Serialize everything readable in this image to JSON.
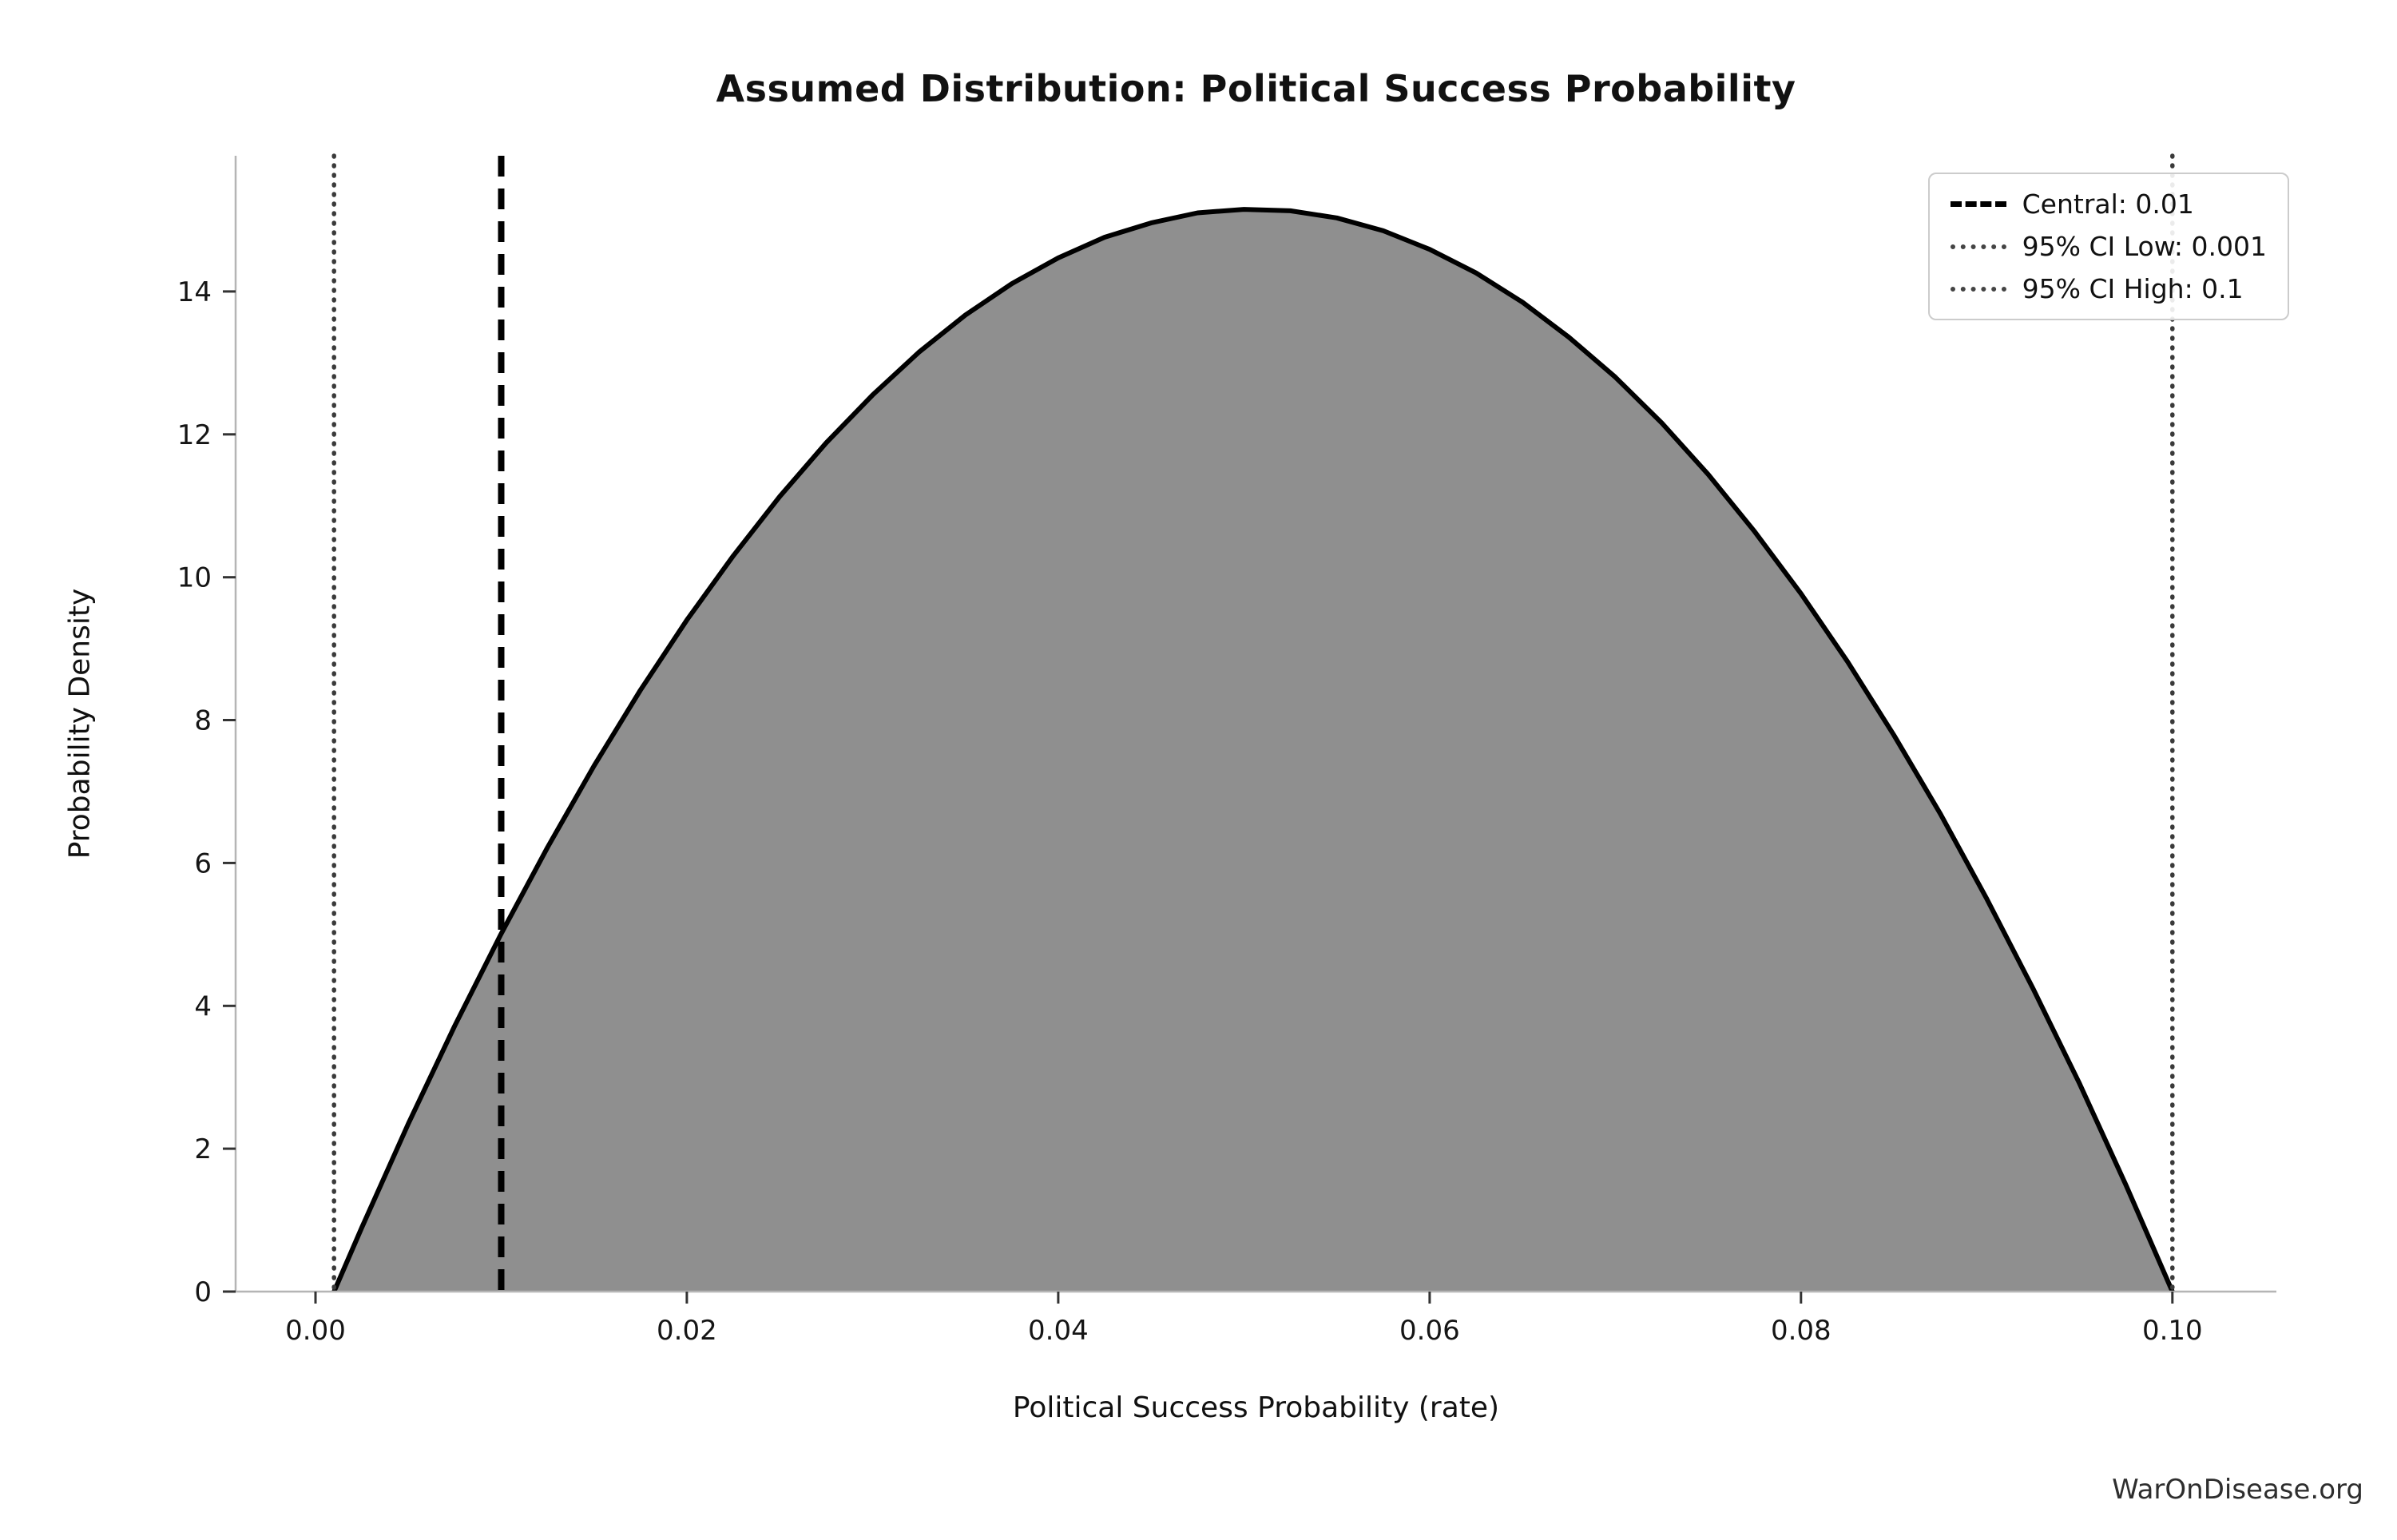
{
  "watermark": "WarOnDisease.org",
  "chart_data": {
    "type": "area",
    "title": "Assumed Distribution: Political Success Probability",
    "xlabel": "Political Success Probability (rate)",
    "ylabel": "Probability Density",
    "xlim": [
      -0.0043,
      0.1056
    ],
    "ylim": [
      0,
      15.9
    ],
    "grid": false,
    "legend_position": "upper right",
    "line_color": "#000000",
    "fill_color": "#8f8f8f",
    "spine_color": "#b5b5b5",
    "xticks": [
      {
        "value": 0.0,
        "label": "0.00"
      },
      {
        "value": 0.02,
        "label": "0.02"
      },
      {
        "value": 0.04,
        "label": "0.04"
      },
      {
        "value": 0.06,
        "label": "0.06"
      },
      {
        "value": 0.08,
        "label": "0.08"
      },
      {
        "value": 0.1,
        "label": "0.10"
      }
    ],
    "yticks": [
      {
        "value": 0,
        "label": "0"
      },
      {
        "value": 2,
        "label": "2"
      },
      {
        "value": 4,
        "label": "4"
      },
      {
        "value": 6,
        "label": "6"
      },
      {
        "value": 8,
        "label": "8"
      },
      {
        "value": 10,
        "label": "10"
      },
      {
        "value": 12,
        "label": "12"
      },
      {
        "value": 14,
        "label": "14"
      }
    ],
    "curve": {
      "name": "probability-density",
      "description": "Symmetric Beta(2,2)-shaped density on [0.001, 0.1], peak 15.15 at 0.0505",
      "x": [
        0.001,
        0.0025,
        0.005,
        0.0075,
        0.01,
        0.0125,
        0.015,
        0.0175,
        0.02,
        0.0225,
        0.025,
        0.0275,
        0.03,
        0.0325,
        0.035,
        0.0375,
        0.04,
        0.0425,
        0.045,
        0.0475,
        0.05,
        0.0525,
        0.055,
        0.0575,
        0.06,
        0.0625,
        0.065,
        0.0675,
        0.07,
        0.0725,
        0.075,
        0.0775,
        0.08,
        0.0825,
        0.085,
        0.0875,
        0.09,
        0.0925,
        0.095,
        0.0975,
        0.1
      ],
      "y": [
        0,
        0.9,
        2.35,
        3.72,
        5.01,
        6.22,
        7.36,
        8.42,
        9.4,
        10.3,
        11.13,
        11.88,
        12.55,
        13.15,
        13.67,
        14.11,
        14.47,
        14.76,
        14.96,
        15.1,
        15.15,
        15.13,
        15.03,
        14.85,
        14.59,
        14.26,
        13.85,
        13.36,
        12.8,
        12.16,
        11.44,
        10.64,
        9.77,
        8.82,
        7.79,
        6.69,
        5.5,
        4.24,
        2.91,
        1.49,
        0
      ]
    },
    "vlines": [
      {
        "x": 0.01,
        "style": "dashed",
        "color": "#000000",
        "label": "Central: 0.01"
      },
      {
        "x": 0.001,
        "style": "dotted",
        "color": "#3a3a3a",
        "label": "95% CI Low: 0.001"
      },
      {
        "x": 0.1,
        "style": "dotted",
        "color": "#3a3a3a",
        "label": "95% CI High: 0.1"
      }
    ],
    "legend": [
      {
        "style": "dashed",
        "label": "Central: 0.01"
      },
      {
        "style": "dotted",
        "label": "95% CI Low: 0.001"
      },
      {
        "style": "dotted",
        "label": "95% CI High: 0.1"
      }
    ]
  }
}
